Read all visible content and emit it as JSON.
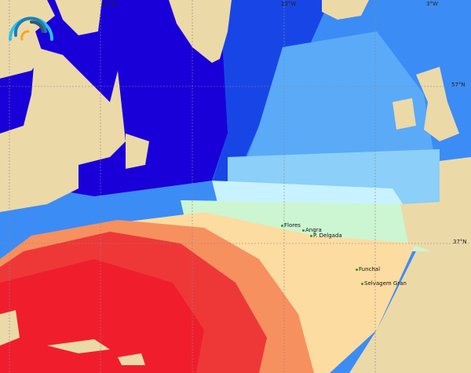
{
  "map": {
    "grid_labels": {
      "lon": [
        "63°W",
        "23°W",
        "3°W"
      ],
      "lat": [
        "57°N",
        "37°N"
      ]
    },
    "places": [
      "Flores",
      "Angra",
      "P. Delgada",
      "Funchal",
      "Selvagem Gran"
    ],
    "colors": {
      "land": "#ecd9a8",
      "coldest": "#1a00d8",
      "cold": "#1846e6",
      "cool": "#3c8cf5",
      "mild": "#8ccff8",
      "pale": "#c8f2ff",
      "green": "#ccf5d2",
      "peach": "#fcdca0",
      "orange": "#f7905f",
      "red": "#ee3838",
      "deep_red": "#f01e2d"
    },
    "logo": "rainbow-arc-logo"
  }
}
